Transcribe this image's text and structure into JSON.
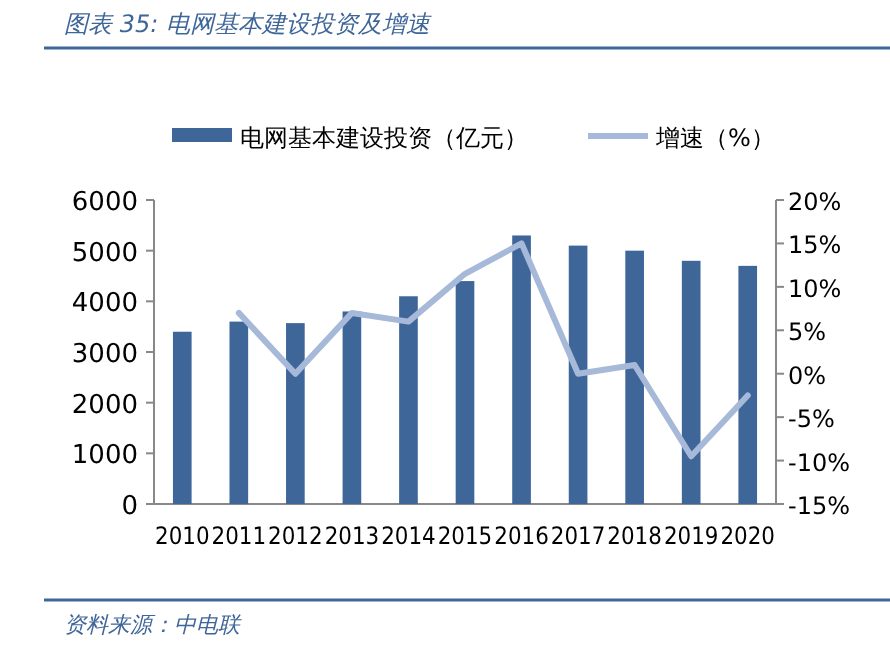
{
  "chart_data": {
    "type": "bar",
    "title": "图表 35:  电网基本建设投资及增速",
    "categories": [
      "2010",
      "2011",
      "2012",
      "2013",
      "2014",
      "2015",
      "2016",
      "2017",
      "2018",
      "2019",
      "2020"
    ],
    "series": [
      {
        "name": "电网基本建设投资（亿元）",
        "color": "#3f6699",
        "values": [
          3400,
          3600,
          3570,
          3800,
          4100,
          4400,
          5300,
          5100,
          5000,
          4800,
          4700
        ]
      },
      {
        "name": "增速（%）",
        "type": "line",
        "axis": "y2",
        "color": "#a7b9d8",
        "values": [
          null,
          7,
          0,
          7,
          6,
          11.5,
          15,
          0,
          1,
          -9.5,
          -2.5
        ]
      }
    ],
    "ylim": [
      0,
      6000
    ],
    "yticks": [
      0,
      1000,
      2000,
      3000,
      4000,
      5000,
      6000
    ],
    "y2lim": [
      -15,
      20
    ],
    "y2ticks": [
      {
        "value": -15,
        "label": "-15%"
      },
      {
        "value": -10,
        "label": "-10%"
      },
      {
        "value": -5,
        "label": "-5%"
      },
      {
        "value": 0,
        "label": "0%"
      },
      {
        "value": 5,
        "label": "5%"
      },
      {
        "value": 10,
        "label": "10%"
      },
      {
        "value": 15,
        "label": "15%"
      },
      {
        "value": 20,
        "label": "20%"
      }
    ],
    "legend": "top",
    "annotations": [
      "资料来源：中电联"
    ]
  }
}
